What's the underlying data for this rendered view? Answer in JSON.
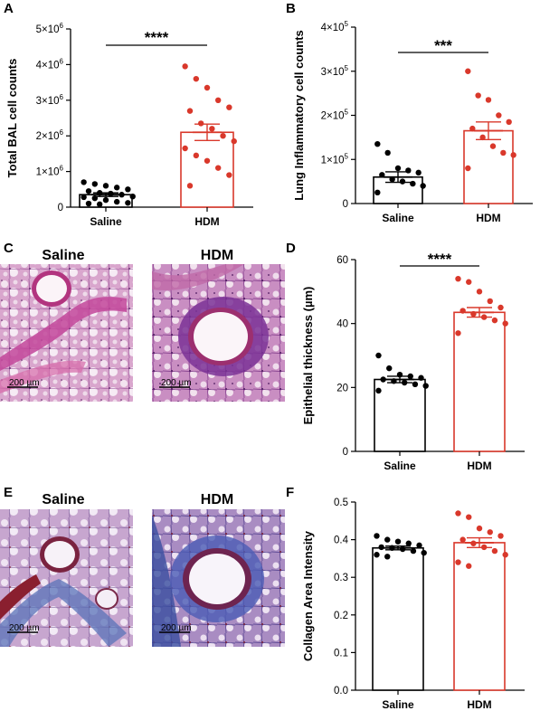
{
  "colors": {
    "control": "#000000",
    "treated": "#d9382b"
  },
  "chart_data": [
    {
      "panel": "A",
      "type": "bar",
      "categories": [
        "Saline",
        "HDM"
      ],
      "ylabel": "Total BAL cell counts",
      "ylim": [
        0,
        5000000
      ],
      "yticks": [
        0,
        1000000,
        2000000,
        3000000,
        4000000,
        5000000
      ],
      "ytick_labels": [
        "0",
        "1×10",
        "2×10",
        "3×10",
        "4×10",
        "5×10"
      ],
      "ytick_exp": [
        "",
        "6",
        "6",
        "6",
        "6",
        "6"
      ],
      "means": [
        350000,
        2100000
      ],
      "sem": [
        50000,
        230000
      ],
      "points": [
        [
          700000,
          650000,
          600000,
          550000,
          500000,
          450000,
          400000,
          380000,
          350000,
          300000,
          280000,
          250000,
          200000,
          150000,
          120000,
          100000,
          80000
        ],
        [
          3950000,
          3600000,
          3350000,
          3000000,
          2800000,
          2700000,
          2350000,
          2200000,
          2000000,
          1850000,
          1650000,
          1450000,
          1300000,
          1100000,
          900000,
          600000
        ]
      ],
      "significance": "****",
      "grid": false
    },
    {
      "panel": "B",
      "type": "bar",
      "categories": [
        "Saline",
        "HDM"
      ],
      "ylabel": "Lung Inflammatory cell counts",
      "ylim": [
        0,
        400000
      ],
      "yticks": [
        0,
        100000,
        200000,
        300000,
        400000
      ],
      "ytick_labels": [
        "0",
        "1×10",
        "2×10",
        "3×10",
        "4×10"
      ],
      "ytick_exp": [
        "",
        "5",
        "5",
        "5",
        "5"
      ],
      "means": [
        60000,
        165000
      ],
      "sem": [
        12000,
        20000
      ],
      "points": [
        [
          135000,
          115000,
          80000,
          75000,
          70000,
          65000,
          55000,
          50000,
          45000,
          40000,
          25000
        ],
        [
          300000,
          245000,
          235000,
          200000,
          185000,
          170000,
          150000,
          130000,
          115000,
          110000,
          80000
        ]
      ],
      "significance": "***",
      "grid": false
    },
    {
      "panel": "D",
      "type": "bar",
      "categories": [
        "Saline",
        "HDM"
      ],
      "ylabel": "Epithelial thickness (µm)",
      "ylim": [
        0,
        60
      ],
      "yticks": [
        0,
        20,
        40,
        60
      ],
      "ytick_labels": [
        "0",
        "20",
        "40",
        "60"
      ],
      "ytick_exp": [
        "",
        "",
        "",
        ""
      ],
      "means": [
        22.5,
        43.5
      ],
      "sem": [
        1,
        1.5
      ],
      "points": [
        [
          30,
          26,
          24,
          23.5,
          23,
          22.5,
          22,
          21.5,
          21,
          20.5,
          19
        ],
        [
          54,
          53,
          50,
          47,
          45,
          44,
          43,
          42,
          41,
          40,
          37
        ]
      ],
      "significance": "****",
      "grid": false
    },
    {
      "panel": "F",
      "type": "bar",
      "categories": [
        "Saline",
        "HDM"
      ],
      "ylabel": "Collagen Area Intensity",
      "ylim": [
        0,
        0.5
      ],
      "yticks": [
        0,
        0.1,
        0.2,
        0.3,
        0.4,
        0.5
      ],
      "ytick_labels": [
        "0.0",
        "0.1",
        "0.2",
        "0.3",
        "0.4",
        "0.5"
      ],
      "ytick_exp": [
        "",
        "",
        "",
        "",
        "",
        ""
      ],
      "means": [
        0.378,
        0.392
      ],
      "sem": [
        0.005,
        0.013
      ],
      "points": [
        [
          0.41,
          0.4,
          0.395,
          0.39,
          0.385,
          0.38,
          0.378,
          0.375,
          0.37,
          0.365,
          0.36,
          0.355
        ],
        [
          0.47,
          0.46,
          0.43,
          0.42,
          0.41,
          0.4,
          0.39,
          0.38,
          0.37,
          0.36,
          0.34,
          0.33
        ]
      ],
      "significance": "",
      "grid": false
    }
  ],
  "panel_labels": {
    "A": "A",
    "B": "B",
    "C": "C",
    "D": "D",
    "E": "E",
    "F": "F"
  },
  "histology": {
    "C": {
      "left_title": "Saline",
      "right_title": "HDM",
      "stain": "H&E",
      "scale_bar": "200 µm"
    },
    "E": {
      "left_title": "Saline",
      "right_title": "HDM",
      "stain": "Masson's trichrome",
      "scale_bar": "200 µm"
    }
  }
}
